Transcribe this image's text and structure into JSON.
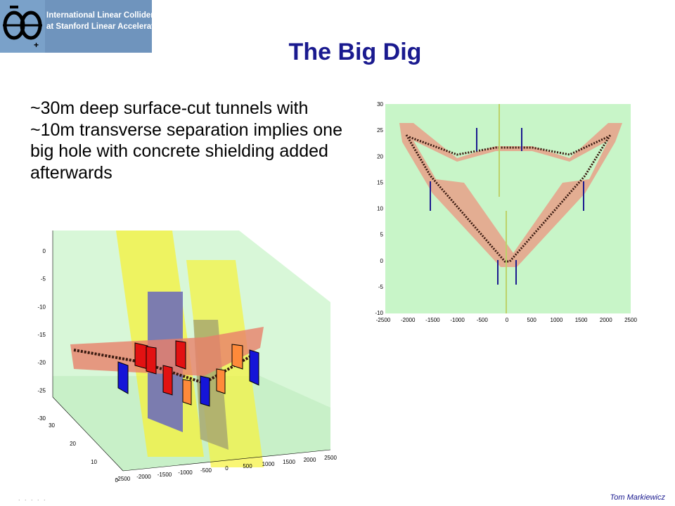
{
  "logo": {
    "line1": "International Linear Collider",
    "line2": "at Stanford Linear Accelerator Center"
  },
  "title": "The Big Dig",
  "body_text": "~30m deep surface-cut tunnels with ~10m transverse separation implies one big hole with concrete shielding added afterwards",
  "footer": {
    "author": "Tom Markiewicz",
    "dots": ". . .  . ."
  },
  "top_plot": {
    "x_ticks": [
      "-2500",
      "-2000",
      "-1500",
      "-1000",
      "-500",
      "0",
      "500",
      "1000",
      "1500",
      "2000",
      "2500"
    ],
    "y_ticks": [
      "30",
      "25",
      "20",
      "15",
      "10",
      "5",
      "0",
      "-5",
      "-10"
    ]
  },
  "iso_plot": {
    "z_ticks": [
      "0",
      "-5",
      "-10",
      "-15",
      "-20",
      "-25",
      "-30"
    ],
    "y_ticks": [
      "30",
      "20",
      "10",
      "0"
    ],
    "x_ticks": [
      "-2500",
      "-2000",
      "-1500",
      "-1000",
      "-500",
      "0",
      "500",
      "1000",
      "1500",
      "2000",
      "2500"
    ]
  },
  "colors": {
    "title": "#1a1a8f",
    "plot_background": "#c8f5c8",
    "tunnel_fill": "#e8a088"
  }
}
